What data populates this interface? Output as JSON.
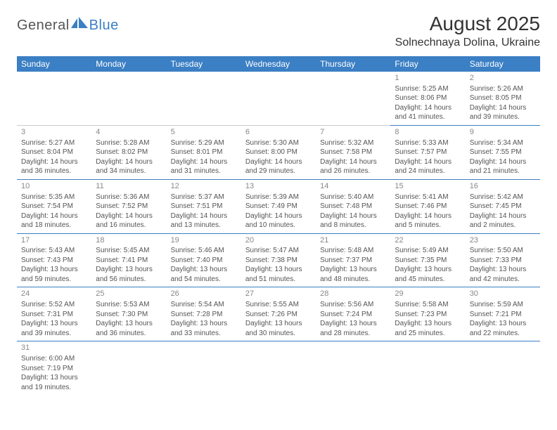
{
  "logo": {
    "text1": "General",
    "text2": "Blue"
  },
  "title": "August 2025",
  "location": "Solnechnaya Dolina, Ukraine",
  "colors": {
    "header_bg": "#3b7fc4",
    "header_fg": "#ffffff",
    "row_border": "#3b7fc4",
    "text": "#555555",
    "daynum": "#888888"
  },
  "day_headers": [
    "Sunday",
    "Monday",
    "Tuesday",
    "Wednesday",
    "Thursday",
    "Friday",
    "Saturday"
  ],
  "weeks": [
    [
      null,
      null,
      null,
      null,
      null,
      {
        "n": "1",
        "sr": "Sunrise: 5:25 AM",
        "ss": "Sunset: 8:06 PM",
        "dl1": "Daylight: 14 hours",
        "dl2": "and 41 minutes."
      },
      {
        "n": "2",
        "sr": "Sunrise: 5:26 AM",
        "ss": "Sunset: 8:05 PM",
        "dl1": "Daylight: 14 hours",
        "dl2": "and 39 minutes."
      }
    ],
    [
      {
        "n": "3",
        "sr": "Sunrise: 5:27 AM",
        "ss": "Sunset: 8:04 PM",
        "dl1": "Daylight: 14 hours",
        "dl2": "and 36 minutes."
      },
      {
        "n": "4",
        "sr": "Sunrise: 5:28 AM",
        "ss": "Sunset: 8:02 PM",
        "dl1": "Daylight: 14 hours",
        "dl2": "and 34 minutes."
      },
      {
        "n": "5",
        "sr": "Sunrise: 5:29 AM",
        "ss": "Sunset: 8:01 PM",
        "dl1": "Daylight: 14 hours",
        "dl2": "and 31 minutes."
      },
      {
        "n": "6",
        "sr": "Sunrise: 5:30 AM",
        "ss": "Sunset: 8:00 PM",
        "dl1": "Daylight: 14 hours",
        "dl2": "and 29 minutes."
      },
      {
        "n": "7",
        "sr": "Sunrise: 5:32 AM",
        "ss": "Sunset: 7:58 PM",
        "dl1": "Daylight: 14 hours",
        "dl2": "and 26 minutes."
      },
      {
        "n": "8",
        "sr": "Sunrise: 5:33 AM",
        "ss": "Sunset: 7:57 PM",
        "dl1": "Daylight: 14 hours",
        "dl2": "and 24 minutes."
      },
      {
        "n": "9",
        "sr": "Sunrise: 5:34 AM",
        "ss": "Sunset: 7:55 PM",
        "dl1": "Daylight: 14 hours",
        "dl2": "and 21 minutes."
      }
    ],
    [
      {
        "n": "10",
        "sr": "Sunrise: 5:35 AM",
        "ss": "Sunset: 7:54 PM",
        "dl1": "Daylight: 14 hours",
        "dl2": "and 18 minutes."
      },
      {
        "n": "11",
        "sr": "Sunrise: 5:36 AM",
        "ss": "Sunset: 7:52 PM",
        "dl1": "Daylight: 14 hours",
        "dl2": "and 16 minutes."
      },
      {
        "n": "12",
        "sr": "Sunrise: 5:37 AM",
        "ss": "Sunset: 7:51 PM",
        "dl1": "Daylight: 14 hours",
        "dl2": "and 13 minutes."
      },
      {
        "n": "13",
        "sr": "Sunrise: 5:39 AM",
        "ss": "Sunset: 7:49 PM",
        "dl1": "Daylight: 14 hours",
        "dl2": "and 10 minutes."
      },
      {
        "n": "14",
        "sr": "Sunrise: 5:40 AM",
        "ss": "Sunset: 7:48 PM",
        "dl1": "Daylight: 14 hours",
        "dl2": "and 8 minutes."
      },
      {
        "n": "15",
        "sr": "Sunrise: 5:41 AM",
        "ss": "Sunset: 7:46 PM",
        "dl1": "Daylight: 14 hours",
        "dl2": "and 5 minutes."
      },
      {
        "n": "16",
        "sr": "Sunrise: 5:42 AM",
        "ss": "Sunset: 7:45 PM",
        "dl1": "Daylight: 14 hours",
        "dl2": "and 2 minutes."
      }
    ],
    [
      {
        "n": "17",
        "sr": "Sunrise: 5:43 AM",
        "ss": "Sunset: 7:43 PM",
        "dl1": "Daylight: 13 hours",
        "dl2": "and 59 minutes."
      },
      {
        "n": "18",
        "sr": "Sunrise: 5:45 AM",
        "ss": "Sunset: 7:41 PM",
        "dl1": "Daylight: 13 hours",
        "dl2": "and 56 minutes."
      },
      {
        "n": "19",
        "sr": "Sunrise: 5:46 AM",
        "ss": "Sunset: 7:40 PM",
        "dl1": "Daylight: 13 hours",
        "dl2": "and 54 minutes."
      },
      {
        "n": "20",
        "sr": "Sunrise: 5:47 AM",
        "ss": "Sunset: 7:38 PM",
        "dl1": "Daylight: 13 hours",
        "dl2": "and 51 minutes."
      },
      {
        "n": "21",
        "sr": "Sunrise: 5:48 AM",
        "ss": "Sunset: 7:37 PM",
        "dl1": "Daylight: 13 hours",
        "dl2": "and 48 minutes."
      },
      {
        "n": "22",
        "sr": "Sunrise: 5:49 AM",
        "ss": "Sunset: 7:35 PM",
        "dl1": "Daylight: 13 hours",
        "dl2": "and 45 minutes."
      },
      {
        "n": "23",
        "sr": "Sunrise: 5:50 AM",
        "ss": "Sunset: 7:33 PM",
        "dl1": "Daylight: 13 hours",
        "dl2": "and 42 minutes."
      }
    ],
    [
      {
        "n": "24",
        "sr": "Sunrise: 5:52 AM",
        "ss": "Sunset: 7:31 PM",
        "dl1": "Daylight: 13 hours",
        "dl2": "and 39 minutes."
      },
      {
        "n": "25",
        "sr": "Sunrise: 5:53 AM",
        "ss": "Sunset: 7:30 PM",
        "dl1": "Daylight: 13 hours",
        "dl2": "and 36 minutes."
      },
      {
        "n": "26",
        "sr": "Sunrise: 5:54 AM",
        "ss": "Sunset: 7:28 PM",
        "dl1": "Daylight: 13 hours",
        "dl2": "and 33 minutes."
      },
      {
        "n": "27",
        "sr": "Sunrise: 5:55 AM",
        "ss": "Sunset: 7:26 PM",
        "dl1": "Daylight: 13 hours",
        "dl2": "and 30 minutes."
      },
      {
        "n": "28",
        "sr": "Sunrise: 5:56 AM",
        "ss": "Sunset: 7:24 PM",
        "dl1": "Daylight: 13 hours",
        "dl2": "and 28 minutes."
      },
      {
        "n": "29",
        "sr": "Sunrise: 5:58 AM",
        "ss": "Sunset: 7:23 PM",
        "dl1": "Daylight: 13 hours",
        "dl2": "and 25 minutes."
      },
      {
        "n": "30",
        "sr": "Sunrise: 5:59 AM",
        "ss": "Sunset: 7:21 PM",
        "dl1": "Daylight: 13 hours",
        "dl2": "and 22 minutes."
      }
    ],
    [
      {
        "n": "31",
        "sr": "Sunrise: 6:00 AM",
        "ss": "Sunset: 7:19 PM",
        "dl1": "Daylight: 13 hours",
        "dl2": "and 19 minutes."
      },
      null,
      null,
      null,
      null,
      null,
      null
    ]
  ]
}
